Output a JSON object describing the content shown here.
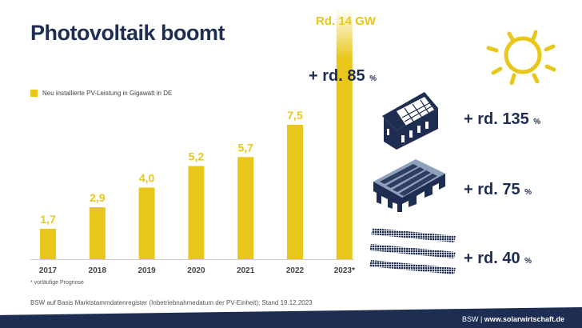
{
  "title": "Photovoltaik boomt",
  "legend": "Neu installierte PV-Leistung in Gigawatt in DE",
  "chart_data": {
    "type": "bar",
    "categories": [
      "2017",
      "2018",
      "2019",
      "2020",
      "2021",
      "2022",
      "2023*"
    ],
    "values": [
      1.7,
      2.9,
      4.0,
      5.2,
      5.7,
      7.5,
      14
    ],
    "data_labels": [
      "1,7",
      "2,9",
      "4,0",
      "5,2",
      "5,7",
      "7,5",
      "Rd. 14 GW"
    ],
    "series": [
      {
        "name": "Neu installierte PV-Leistung in Gigawatt in DE",
        "values": [
          1.7,
          2.9,
          4.0,
          5.2,
          5.7,
          7.5,
          14
        ]
      }
    ],
    "unit": "GW",
    "color": "#e8c71a",
    "ylim": [
      0,
      14
    ],
    "grid": false,
    "legend_position": "top-left",
    "annotations": [
      "+ rd. 85 %"
    ]
  },
  "growth": {
    "total": {
      "value": "+ rd. 85",
      "unit": "%"
    },
    "homes": {
      "value": "+ rd. 135",
      "unit": "%",
      "icon": "house-solar-icon"
    },
    "commercial": {
      "value": "+ rd. 75",
      "unit": "%",
      "icon": "commercial-roof-solar-icon"
    },
    "ground": {
      "value": "+ rd. 40",
      "unit": "%",
      "icon": "ground-solar-panels-icon"
    }
  },
  "note": "* vorläufige Prognose",
  "source": "BSW auf Basis Marktstammdatenregister (Inbetriebnahmedatum der PV-Einheit); Stand 19.12.2023",
  "footer": {
    "org": "BSW",
    "sep": " | ",
    "url": "www.solarwirtschaft.de"
  },
  "colors": {
    "navy": "#1e2d52",
    "yellow": "#e8c71a"
  }
}
